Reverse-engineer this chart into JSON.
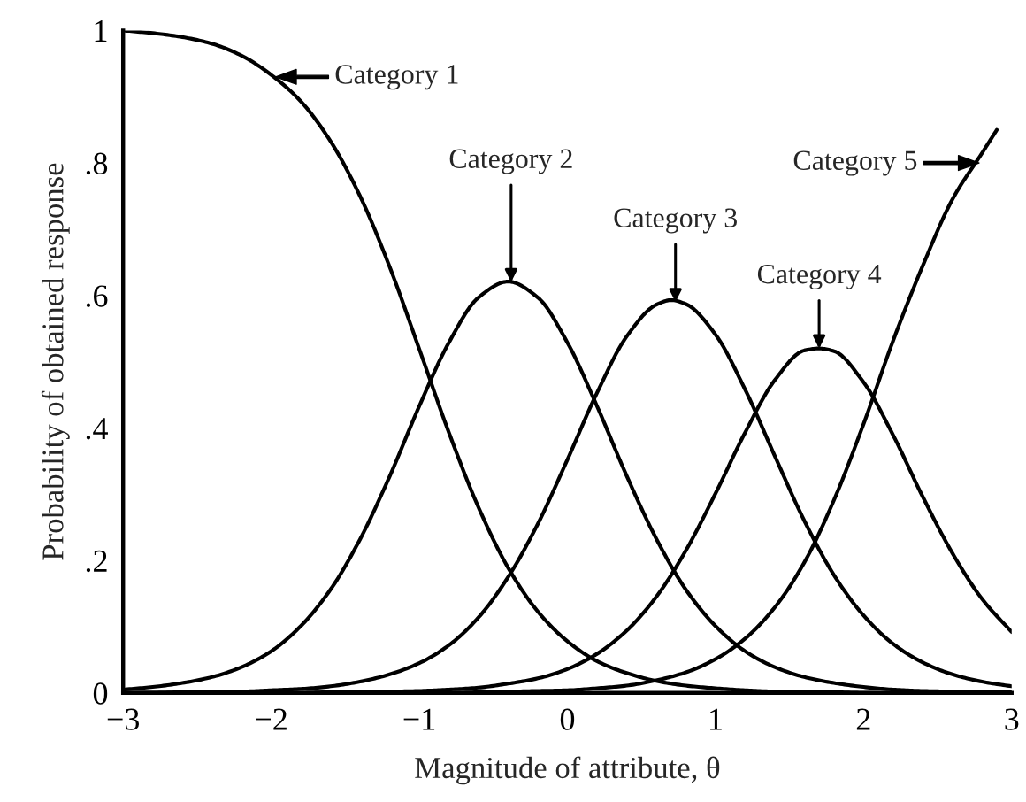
{
  "chart_data": {
    "type": "line",
    "xlabel": "Magnitude of attribute, θ",
    "ylabel": "Probability of obtained response",
    "x": [
      -3,
      -2.8,
      -2.6,
      -2.4,
      -2.2,
      -2,
      -1.8,
      -1.6,
      -1.4,
      -1.2,
      -1,
      -0.8,
      -0.6,
      -0.4,
      -0.2,
      0,
      0.2,
      0.4,
      0.6,
      0.8,
      1,
      1.2,
      1.4,
      1.6,
      1.8,
      2,
      2.2,
      2.4,
      2.6,
      2.8,
      3
    ],
    "series": [
      {
        "color": "#000000",
        "values": [
          1.0,
          0.996,
          0.99,
          0.98,
          0.962,
          0.933,
          0.893,
          0.833,
          0.75,
          0.643,
          0.519,
          0.393,
          0.28,
          0.189,
          0.123,
          0.078,
          0.048,
          0.03,
          0.018,
          0.011,
          0.007,
          0.004,
          0.002,
          0.001,
          0.001,
          0,
          0,
          0,
          0,
          0,
          0
        ]
      },
      {
        "color": "#000000",
        "values": [
          0.005,
          0.009,
          0.015,
          0.024,
          0.039,
          0.063,
          0.101,
          0.156,
          0.232,
          0.327,
          0.433,
          0.529,
          0.597,
          0.621,
          0.597,
          0.529,
          0.433,
          0.328,
          0.233,
          0.156,
          0.101,
          0.063,
          0.039,
          0.024,
          0.015,
          0.009,
          0.005,
          0.003,
          0.002,
          0.001,
          0.001
        ]
      },
      {
        "color": "#000000",
        "x": [
          -3,
          -2.8,
          -2.6,
          -2.4,
          -2.2,
          -2,
          -1.8,
          -1.6,
          -1.4,
          -1.2,
          -1,
          -0.8,
          -0.6,
          -0.4,
          -0.2,
          0,
          0.2,
          0.4,
          0.6,
          0.7,
          0.8,
          1,
          1.2,
          1.4,
          1.6,
          1.8,
          2,
          2.2,
          2.4,
          2.6,
          2.8,
          3
        ],
        "values": [
          0,
          0,
          0.001,
          0.001,
          0.002,
          0.004,
          0.006,
          0.01,
          0.017,
          0.028,
          0.045,
          0.072,
          0.114,
          0.175,
          0.255,
          0.352,
          0.453,
          0.538,
          0.586,
          0.593,
          0.587,
          0.541,
          0.458,
          0.358,
          0.26,
          0.178,
          0.117,
          0.074,
          0.046,
          0.028,
          0.017,
          0.01
        ]
      },
      {
        "color": "#000000",
        "x": [
          -3,
          -2.8,
          -2.6,
          -2.4,
          -2.2,
          -2,
          -1.8,
          -1.6,
          -1.4,
          -1.2,
          -1,
          -0.8,
          -0.6,
          -0.4,
          -0.2,
          0,
          0.2,
          0.4,
          0.6,
          0.8,
          1,
          1.2,
          1.4,
          1.6,
          1.7,
          1.8,
          2,
          2.2,
          2.4,
          2.6,
          2.8,
          3
        ],
        "values": [
          0,
          0,
          0,
          0,
          0,
          0,
          0,
          0.001,
          0.001,
          0.002,
          0.003,
          0.005,
          0.008,
          0.014,
          0.022,
          0.036,
          0.059,
          0.094,
          0.145,
          0.215,
          0.301,
          0.393,
          0.472,
          0.517,
          0.52,
          0.516,
          0.469,
          0.389,
          0.296,
          0.211,
          0.142,
          0.092
        ]
      },
      {
        "color": "#000000",
        "x": [
          -3,
          -2.8,
          -2.6,
          -2.4,
          -2.2,
          -2,
          -1.8,
          -1.6,
          -1.4,
          -1.2,
          -1,
          -0.8,
          -0.6,
          -0.4,
          -0.2,
          0,
          0.2,
          0.4,
          0.6,
          0.8,
          1,
          1.2,
          1.4,
          1.6,
          1.8,
          2,
          2.2,
          2.4,
          2.6,
          2.8,
          2.9
        ],
        "values": [
          0,
          0,
          0,
          0,
          0,
          0,
          0,
          0,
          0,
          0,
          0,
          0,
          0.001,
          0.002,
          0.003,
          0.004,
          0.007,
          0.011,
          0.019,
          0.031,
          0.051,
          0.082,
          0.129,
          0.197,
          0.291,
          0.406,
          0.532,
          0.645,
          0.745,
          0.815,
          0.85
        ]
      }
    ],
    "xlim": [
      -3,
      3
    ],
    "ylim": [
      0,
      1
    ],
    "xticks": [
      {
        "value": -3,
        "label": "−3"
      },
      {
        "value": -2,
        "label": "−2"
      },
      {
        "value": -1,
        "label": "−1"
      },
      0,
      1,
      2,
      3
    ],
    "yticks": [
      0,
      {
        "value": 0.2,
        "label": ".2"
      },
      {
        "value": 0.4,
        "label": ".4"
      },
      {
        "value": 0.6,
        "label": ".6"
      },
      {
        "value": 0.8,
        "label": ".8"
      },
      1
    ],
    "grid": false,
    "line_style": "solid",
    "annotations": [
      {
        "text": "Category 1",
        "x": -1.97,
        "y": 0.93
      },
      {
        "text": "Category 2",
        "x": -0.38,
        "y": 0.62
      },
      {
        "text": "Category 3",
        "x": 0.73,
        "y": 0.59
      },
      {
        "text": "Category 4",
        "x": 1.7,
        "y": 0.52
      },
      {
        "text": "Category 5",
        "x": 2.78,
        "y": 0.8
      }
    ]
  }
}
